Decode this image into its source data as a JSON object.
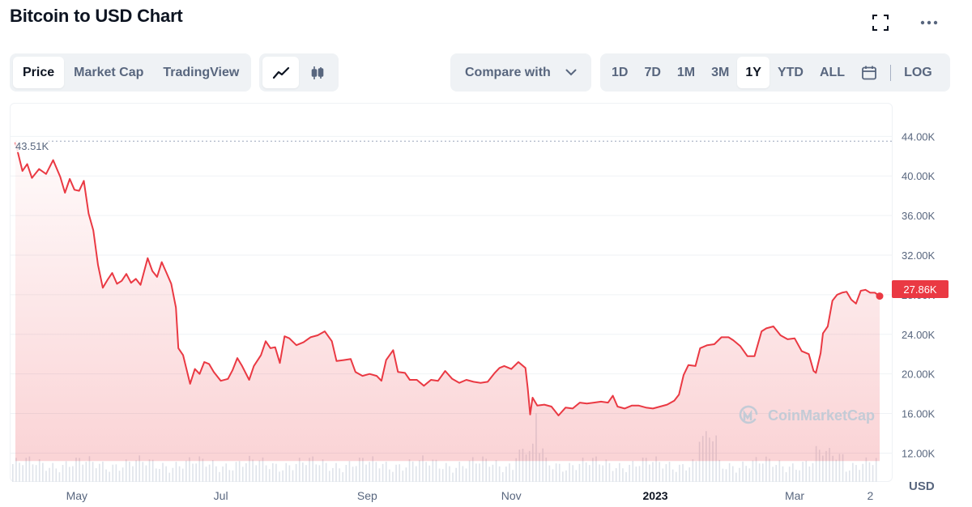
{
  "header": {
    "title": "Bitcoin to USD Chart"
  },
  "type_tabs": [
    {
      "label": "Price",
      "active": true
    },
    {
      "label": "Market Cap",
      "active": false
    },
    {
      "label": "TradingView",
      "active": false
    }
  ],
  "style_toggle": {
    "line_icon": "line-chart-icon",
    "candle_icon": "candlestick-icon",
    "active": "line"
  },
  "compare": {
    "label": "Compare with"
  },
  "range_tabs": [
    {
      "label": "1D",
      "active": false
    },
    {
      "label": "7D",
      "active": false
    },
    {
      "label": "1M",
      "active": false
    },
    {
      "label": "3M",
      "active": false
    },
    {
      "label": "1Y",
      "active": true
    },
    {
      "label": "YTD",
      "active": false
    },
    {
      "label": "ALL",
      "active": false
    }
  ],
  "scale_toggle": {
    "label": "LOG"
  },
  "watermark": {
    "text": "CoinMarketCap"
  },
  "colors": {
    "line": "#ea3943",
    "fill_top": "#ea3943",
    "volume": "#dfe3ea",
    "grid": "#eff2f5"
  },
  "chart_data": {
    "type": "area",
    "currency_label": "USD",
    "max_label": "43.51K",
    "last_label": "27.86K",
    "y_ticks": [
      "12.00K",
      "16.00K",
      "20.00K",
      "24.00K",
      "28.00K",
      "32.00K",
      "36.00K",
      "40.00K",
      "44.00K"
    ],
    "y_tick_values": [
      12000,
      16000,
      20000,
      24000,
      28000,
      32000,
      36000,
      40000,
      44000
    ],
    "x_ticks": [
      {
        "label": "May",
        "date": "2022-05-01",
        "bold": false
      },
      {
        "label": "Jul",
        "date": "2022-07-01",
        "bold": false
      },
      {
        "label": "Sep",
        "date": "2022-09-01",
        "bold": false
      },
      {
        "label": "Nov",
        "date": "2022-11-01",
        "bold": false
      },
      {
        "label": "2023",
        "date": "2023-01-01",
        "bold": true
      },
      {
        "label": "Mar",
        "date": "2023-03-01",
        "bold": false
      },
      {
        "label": "2",
        "date": "2023-04-02",
        "bold": false
      }
    ],
    "x_range": [
      "2022-04-05",
      "2023-04-06"
    ],
    "y_range": [
      9500,
      45500
    ],
    "series": [
      {
        "points": [
          [
            "2022-04-05",
            43400
          ],
          [
            "2022-04-08",
            40500
          ],
          [
            "2022-04-10",
            41200
          ],
          [
            "2022-04-12",
            39800
          ],
          [
            "2022-04-15",
            40700
          ],
          [
            "2022-04-18",
            40200
          ],
          [
            "2022-04-21",
            41600
          ],
          [
            "2022-04-24",
            39900
          ],
          [
            "2022-04-26",
            38300
          ],
          [
            "2022-04-28",
            39700
          ],
          [
            "2022-04-30",
            38600
          ],
          [
            "2022-05-02",
            38500
          ],
          [
            "2022-05-04",
            39500
          ],
          [
            "2022-05-06",
            36200
          ],
          [
            "2022-05-08",
            34500
          ],
          [
            "2022-05-10",
            31000
          ],
          [
            "2022-05-12",
            28700
          ],
          [
            "2022-05-14",
            29500
          ],
          [
            "2022-05-16",
            30200
          ],
          [
            "2022-05-18",
            29100
          ],
          [
            "2022-05-20",
            29400
          ],
          [
            "2022-05-22",
            30100
          ],
          [
            "2022-05-24",
            29200
          ],
          [
            "2022-05-26",
            29600
          ],
          [
            "2022-05-28",
            29000
          ],
          [
            "2022-05-31",
            31700
          ],
          [
            "2022-06-02",
            30400
          ],
          [
            "2022-06-04",
            29800
          ],
          [
            "2022-06-06",
            31300
          ],
          [
            "2022-06-08",
            30200
          ],
          [
            "2022-06-10",
            29100
          ],
          [
            "2022-06-12",
            26700
          ],
          [
            "2022-06-13",
            22600
          ],
          [
            "2022-06-15",
            21900
          ],
          [
            "2022-06-18",
            19000
          ],
          [
            "2022-06-20",
            20500
          ],
          [
            "2022-06-22",
            20000
          ],
          [
            "2022-06-24",
            21200
          ],
          [
            "2022-06-26",
            21000
          ],
          [
            "2022-06-28",
            20200
          ],
          [
            "2022-07-01",
            19300
          ],
          [
            "2022-07-04",
            19500
          ],
          [
            "2022-07-06",
            20400
          ],
          [
            "2022-07-08",
            21600
          ],
          [
            "2022-07-10",
            20800
          ],
          [
            "2022-07-13",
            19400
          ],
          [
            "2022-07-15",
            20800
          ],
          [
            "2022-07-18",
            21900
          ],
          [
            "2022-07-20",
            23300
          ],
          [
            "2022-07-22",
            22600
          ],
          [
            "2022-07-24",
            22700
          ],
          [
            "2022-07-26",
            21100
          ],
          [
            "2022-07-28",
            23800
          ],
          [
            "2022-07-30",
            23600
          ],
          [
            "2022-08-02",
            22900
          ],
          [
            "2022-08-05",
            23200
          ],
          [
            "2022-08-08",
            23700
          ],
          [
            "2022-08-11",
            23900
          ],
          [
            "2022-08-14",
            24300
          ],
          [
            "2022-08-17",
            23300
          ],
          [
            "2022-08-19",
            21300
          ],
          [
            "2022-08-22",
            21400
          ],
          [
            "2022-08-25",
            21500
          ],
          [
            "2022-08-27",
            20200
          ],
          [
            "2022-08-30",
            19800
          ],
          [
            "2022-09-02",
            20000
          ],
          [
            "2022-09-05",
            19800
          ],
          [
            "2022-09-07",
            19300
          ],
          [
            "2022-09-09",
            21400
          ],
          [
            "2022-09-12",
            22400
          ],
          [
            "2022-09-14",
            20200
          ],
          [
            "2022-09-17",
            20100
          ],
          [
            "2022-09-19",
            19400
          ],
          [
            "2022-09-22",
            19400
          ],
          [
            "2022-09-25",
            18800
          ],
          [
            "2022-09-28",
            19400
          ],
          [
            "2022-10-01",
            19300
          ],
          [
            "2022-10-04",
            20300
          ],
          [
            "2022-10-07",
            19500
          ],
          [
            "2022-10-10",
            19100
          ],
          [
            "2022-10-13",
            19400
          ],
          [
            "2022-10-16",
            19200
          ],
          [
            "2022-10-19",
            19100
          ],
          [
            "2022-10-22",
            19200
          ],
          [
            "2022-10-25",
            20100
          ],
          [
            "2022-10-27",
            20600
          ],
          [
            "2022-10-29",
            20800
          ],
          [
            "2022-11-01",
            20500
          ],
          [
            "2022-11-04",
            21200
          ],
          [
            "2022-11-07",
            20600
          ],
          [
            "2022-11-08",
            18500
          ],
          [
            "2022-11-09",
            15900
          ],
          [
            "2022-11-10",
            17600
          ],
          [
            "2022-11-12",
            16800
          ],
          [
            "2022-11-15",
            16900
          ],
          [
            "2022-11-18",
            16700
          ],
          [
            "2022-11-21",
            15800
          ],
          [
            "2022-11-24",
            16600
          ],
          [
            "2022-11-27",
            16500
          ],
          [
            "2022-11-30",
            17100
          ],
          [
            "2022-12-03",
            17000
          ],
          [
            "2022-12-06",
            17100
          ],
          [
            "2022-12-09",
            17200
          ],
          [
            "2022-12-12",
            17100
          ],
          [
            "2022-12-14",
            17800
          ],
          [
            "2022-12-16",
            16700
          ],
          [
            "2022-12-19",
            16500
          ],
          [
            "2022-12-22",
            16800
          ],
          [
            "2022-12-25",
            16800
          ],
          [
            "2022-12-28",
            16600
          ],
          [
            "2022-12-31",
            16500
          ],
          [
            "2023-01-03",
            16700
          ],
          [
            "2023-01-06",
            16900
          ],
          [
            "2023-01-09",
            17300
          ],
          [
            "2023-01-11",
            17900
          ],
          [
            "2023-01-13",
            19900
          ],
          [
            "2023-01-15",
            20900
          ],
          [
            "2023-01-18",
            20800
          ],
          [
            "2023-01-20",
            22600
          ],
          [
            "2023-01-23",
            22900
          ],
          [
            "2023-01-26",
            23000
          ],
          [
            "2023-01-29",
            23700
          ],
          [
            "2023-02-01",
            23700
          ],
          [
            "2023-02-03",
            23400
          ],
          [
            "2023-02-06",
            22800
          ],
          [
            "2023-02-09",
            21800
          ],
          [
            "2023-02-12",
            21800
          ],
          [
            "2023-02-15",
            24300
          ],
          [
            "2023-02-17",
            24600
          ],
          [
            "2023-02-20",
            24800
          ],
          [
            "2023-02-23",
            23900
          ],
          [
            "2023-02-26",
            23500
          ],
          [
            "2023-03-01",
            23600
          ],
          [
            "2023-03-04",
            22300
          ],
          [
            "2023-03-07",
            22000
          ],
          [
            "2023-03-09",
            20300
          ],
          [
            "2023-03-10",
            20100
          ],
          [
            "2023-03-12",
            22100
          ],
          [
            "2023-03-13",
            24100
          ],
          [
            "2023-03-15",
            24800
          ],
          [
            "2023-03-17",
            27400
          ],
          [
            "2023-03-19",
            28000
          ],
          [
            "2023-03-21",
            28200
          ],
          [
            "2023-03-23",
            28300
          ],
          [
            "2023-03-25",
            27500
          ],
          [
            "2023-03-27",
            27100
          ],
          [
            "2023-03-29",
            28400
          ],
          [
            "2023-03-31",
            28500
          ],
          [
            "2023-04-02",
            28200
          ],
          [
            "2023-04-04",
            28200
          ],
          [
            "2023-04-06",
            27860
          ]
        ]
      }
    ]
  }
}
